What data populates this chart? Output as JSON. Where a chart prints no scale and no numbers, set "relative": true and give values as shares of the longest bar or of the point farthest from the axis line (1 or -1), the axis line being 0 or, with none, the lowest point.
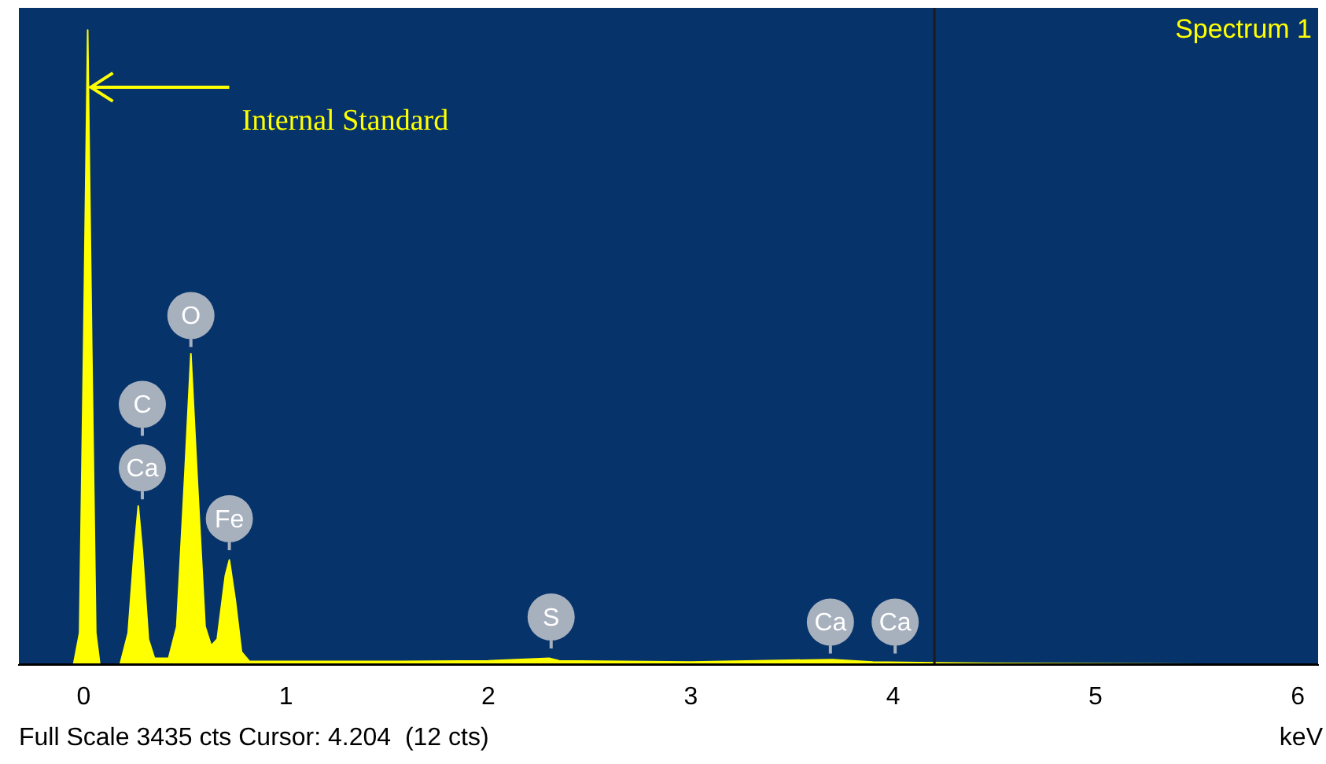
{
  "chart_data": {
    "type": "area",
    "title": "Spectrum 1",
    "xlabel": "keV",
    "relative": true,
    "tick_labels": "x",
    "grid": false,
    "legend": false,
    "marker": "none",
    "xlim": [
      -0.32,
      6.1
    ],
    "xticks": [
      0,
      1,
      2,
      3,
      4,
      5,
      6
    ],
    "series": [
      {
        "color": "#ffff00",
        "x": [
          -0.3,
          -0.05,
          -0.02,
          0.0,
          0.02,
          0.04,
          0.06,
          0.08,
          0.18,
          0.22,
          0.25,
          0.27,
          0.29,
          0.32,
          0.35,
          0.42,
          0.46,
          0.5,
          0.53,
          0.56,
          0.6,
          0.63,
          0.66,
          0.7,
          0.72,
          0.75,
          0.78,
          0.82,
          1.5,
          2.0,
          2.3,
          2.35,
          3.0,
          3.7,
          3.9,
          4.2,
          4.5,
          6.1
        ],
        "values": [
          0,
          0,
          0.05,
          0.5,
          1.0,
          0.5,
          0.05,
          0,
          0,
          0.05,
          0.18,
          0.25,
          0.18,
          0.04,
          0.01,
          0.01,
          0.06,
          0.3,
          0.49,
          0.3,
          0.06,
          0.03,
          0.04,
          0.14,
          0.165,
          0.1,
          0.02,
          0.005,
          0.005,
          0.006,
          0.01,
          0.006,
          0.004,
          0.008,
          0.004,
          0.003,
          0.002,
          0
        ]
      }
    ],
    "ref_lines": [
      {
        "axis": "x",
        "value": 4.204,
        "color": "#1c1c1c"
      }
    ],
    "annotations": [
      {
        "text": "Internal Standard",
        "x": 0.02,
        "y": 0.91
      },
      {
        "text": "C",
        "x": 0.29,
        "y": 0.41
      },
      {
        "text": "Ca",
        "x": 0.29,
        "y": 0.31
      },
      {
        "text": "O",
        "x": 0.53,
        "y": 0.55
      },
      {
        "text": "Fe",
        "x": 0.72,
        "y": 0.23
      },
      {
        "text": "S",
        "x": 2.31,
        "y": 0.075
      },
      {
        "text": "Ca",
        "x": 3.69,
        "y": 0.067
      },
      {
        "text": "Ca",
        "x": 4.01,
        "y": 0.067
      },
      "Full Scale 3435 cts Cursor: 4.204  (12 cts)"
    ]
  }
}
